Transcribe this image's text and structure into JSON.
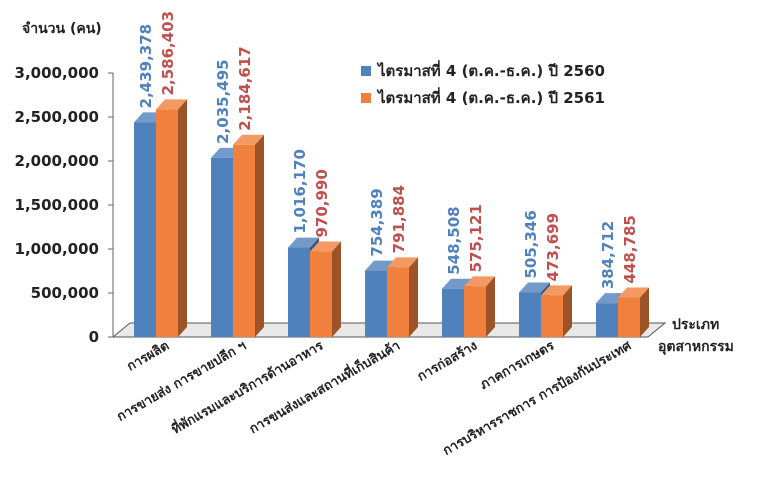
{
  "chart_data": {
    "type": "bar",
    "ylabel": "จำนวน (คน)",
    "xlabel_lines": [
      "ประเภท",
      "อุตสาหกรรม"
    ],
    "ylim": [
      0,
      3000000
    ],
    "yticks": [
      "0",
      "500,000",
      "1,000,000",
      "1,500,000",
      "2,000,000",
      "2,500,000",
      "3,000,000"
    ],
    "categories": [
      "การผลิต",
      "การขายส่ง การขายปลีก ฯ",
      "ที่พักแรมและบริการด้านอาหาร",
      "การขนส่งและสถานที่เก็บสินค้า",
      "การก่อสร้าง",
      "ภาคการเกษตร",
      "การบริหารราชการ การป้องกันประเทศ"
    ],
    "series": [
      {
        "name": "ไตรมาสที่ 4 (ต.ค.-ธ.ค.) ปี 2560",
        "color": "#4f81bd",
        "values": [
          2439378,
          2035495,
          1016170,
          754389,
          548508,
          505346,
          384712
        ],
        "labels": [
          "2,439,378",
          "2,035,495",
          "1,016,170",
          "754,389",
          "548,508",
          "505,346",
          "384,712"
        ]
      },
      {
        "name": "ไตรมาสที่ 4 (ต.ค.-ธ.ค.) ปี 2561",
        "color": "#f0803c",
        "values": [
          2586403,
          2184617,
          970990,
          791884,
          575121,
          473699,
          448785
        ],
        "labels": [
          "2,586,403",
          "2,184,617",
          "970,990",
          "791,884",
          "575,121",
          "473,699",
          "448,785"
        ]
      }
    ],
    "legend_position": "top-right",
    "grid": false
  }
}
